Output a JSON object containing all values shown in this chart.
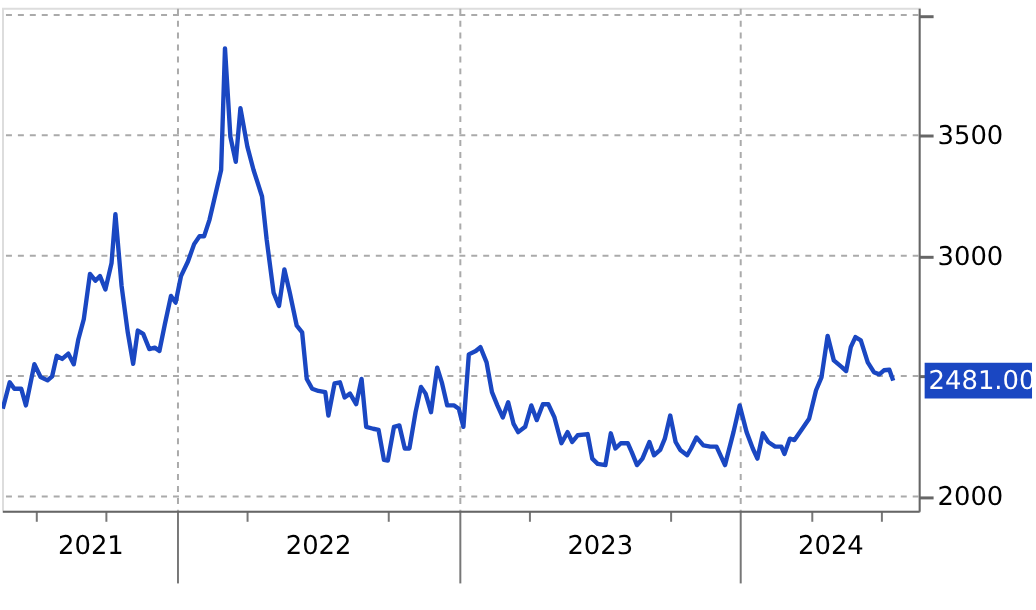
{
  "chart_data": {
    "type": "line",
    "x": [
      "2021-05-20",
      "2021-05-29",
      "2021-06-04",
      "2021-06-13",
      "2021-06-19",
      "2021-06-30",
      "2021-07-08",
      "2021-07-17",
      "2021-07-23",
      "2021-07-29",
      "2021-08-05",
      "2021-08-13",
      "2021-08-20",
      "2021-08-26",
      "2021-09-02",
      "2021-09-10",
      "2021-09-17",
      "2021-09-23",
      "2021-09-30",
      "2021-10-08",
      "2021-10-13",
      "2021-10-21",
      "2021-10-29",
      "2021-11-05",
      "2021-11-11",
      "2021-11-18",
      "2021-11-26",
      "2021-12-03",
      "2021-12-09",
      "2021-12-16",
      "2021-12-24",
      "2021-12-30",
      "2022-01-06",
      "2022-01-15",
      "2022-01-23",
      "2022-01-30",
      "2022-02-05",
      "2022-02-12",
      "2022-02-18",
      "2022-02-27",
      "2022-03-04",
      "2022-03-11",
      "2022-03-18",
      "2022-03-24",
      "2022-04-02",
      "2022-04-10",
      "2022-04-21",
      "2022-04-27",
      "2022-05-06",
      "2022-05-13",
      "2022-05-20",
      "2022-05-27",
      "2022-06-05",
      "2022-06-12",
      "2022-06-18",
      "2022-06-25",
      "2022-07-03",
      "2022-07-12",
      "2022-07-16",
      "2022-07-24",
      "2022-07-31",
      "2022-08-06",
      "2022-08-13",
      "2022-08-21",
      "2022-08-28",
      "2022-09-03",
      "2022-09-12",
      "2022-09-19",
      "2022-09-26",
      "2022-10-01",
      "2022-10-09",
      "2022-10-16",
      "2022-10-23",
      "2022-10-29",
      "2022-11-06",
      "2022-11-13",
      "2022-11-19",
      "2022-11-26",
      "2022-12-04",
      "2022-12-10",
      "2022-12-17",
      "2022-12-26",
      "2023-01-01",
      "2023-01-07",
      "2023-01-14",
      "2023-01-23",
      "2023-01-29",
      "2023-02-06",
      "2023-02-13",
      "2023-02-20",
      "2023-02-27",
      "2023-03-06",
      "2023-03-13",
      "2023-03-19",
      "2023-03-28",
      "2023-04-05",
      "2023-04-12",
      "2023-04-20",
      "2023-04-27",
      "2023-05-05",
      "2023-05-14",
      "2023-05-22",
      "2023-05-28",
      "2023-06-04",
      "2023-06-17",
      "2023-06-23",
      "2023-06-30",
      "2023-07-10",
      "2023-07-17",
      "2023-07-23",
      "2023-07-30",
      "2023-08-08",
      "2023-08-13",
      "2023-08-20",
      "2023-08-27",
      "2023-09-05",
      "2023-09-11",
      "2023-09-19",
      "2023-09-25",
      "2023-10-02",
      "2023-10-09",
      "2023-10-15",
      "2023-10-24",
      "2023-10-29",
      "2023-11-05",
      "2023-11-14",
      "2023-11-23",
      "2023-12-01",
      "2023-12-12",
      "2023-12-23",
      "2023-12-31",
      "2024-01-09",
      "2024-01-17",
      "2024-01-23",
      "2024-01-30",
      "2024-02-06",
      "2024-02-15",
      "2024-02-23",
      "2024-02-27",
      "2024-03-05",
      "2024-03-11",
      "2024-03-20",
      "2024-03-30",
      "2024-04-08",
      "2024-04-15",
      "2024-04-23",
      "2024-05-01",
      "2024-05-11",
      "2024-05-17",
      "2024-05-23",
      "2024-05-29",
      "2024-06-05",
      "2024-06-14",
      "2024-06-22",
      "2024-06-29",
      "2024-07-05",
      "2024-07-12",
      "2024-07-17"
    ],
    "series": [
      {
        "color": "#1a47c2",
        "values": [
          2364,
          2474,
          2447,
          2447,
          2378,
          2549,
          2496,
          2482,
          2499,
          2584,
          2571,
          2593,
          2549,
          2653,
          2736,
          2924,
          2896,
          2915,
          2860,
          2970,
          3172,
          2874,
          2681,
          2551,
          2689,
          2675,
          2612,
          2618,
          2604,
          2714,
          2833,
          2805,
          2915,
          2976,
          3048,
          3081,
          3081,
          3150,
          3232,
          3356,
          3861,
          3494,
          3390,
          3613,
          3453,
          3356,
          3246,
          3067,
          2846,
          2791,
          2943,
          2846,
          2709,
          2681,
          2488,
          2447,
          2438,
          2433,
          2336,
          2469,
          2474,
          2411,
          2427,
          2383,
          2488,
          2289,
          2281,
          2276,
          2152,
          2149,
          2289,
          2295,
          2199,
          2199,
          2350,
          2455,
          2427,
          2350,
          2535,
          2474,
          2378,
          2378,
          2364,
          2289,
          2590,
          2604,
          2620,
          2557,
          2433,
          2378,
          2328,
          2391,
          2301,
          2267,
          2289,
          2378,
          2317,
          2383,
          2383,
          2328,
          2221,
          2267,
          2226,
          2254,
          2259,
          2157,
          2135,
          2130,
          2262,
          2199,
          2221,
          2221,
          2185,
          2130,
          2157,
          2226,
          2171,
          2193,
          2240,
          2336,
          2226,
          2193,
          2171,
          2199,
          2245,
          2212,
          2207,
          2207,
          2130,
          2267,
          2378,
          2267,
          2199,
          2157,
          2262,
          2226,
          2207,
          2207,
          2176,
          2240,
          2234,
          2276,
          2323,
          2441,
          2494,
          2667,
          2565,
          2538,
          2521,
          2620,
          2662,
          2648,
          2557,
          2516,
          2507,
          2524,
          2526,
          2481
        ]
      }
    ],
    "xlim": [
      "2021-05-19",
      "2024-08-19"
    ],
    "xticks": [
      {
        "value": "2021-07-01",
        "label": null
      },
      {
        "value": "2021-09-10",
        "label": "2021"
      },
      {
        "value": "2021-10-01",
        "label": null
      },
      {
        "value": "2022-01-01",
        "label": null
      },
      {
        "value": "2022-04-01",
        "label": null
      },
      {
        "value": "2022-07-02",
        "label": "2022"
      },
      {
        "value": "2022-10-01",
        "label": null
      },
      {
        "value": "2023-01-01",
        "label": null
      },
      {
        "value": "2023-04-01",
        "label": null
      },
      {
        "value": "2023-07-02",
        "label": "2023"
      },
      {
        "value": "2023-10-01",
        "label": null
      },
      {
        "value": "2024-01-01",
        "label": null
      },
      {
        "value": "2024-04-01",
        "label": null
      },
      {
        "value": "2024-04-26",
        "label": "2024"
      },
      {
        "value": "2024-07-01",
        "label": null
      }
    ],
    "ylim": [
      1940,
      4030
    ],
    "yticks": [
      2000,
      {
        "value": 2500,
        "label": null
      },
      3000,
      3500,
      {
        "value": 4000,
        "label": null
      }
    ],
    "annotations": [
      "2481.00"
    ],
    "grid": true,
    "marker": "none",
    "line_style": "solid"
  }
}
